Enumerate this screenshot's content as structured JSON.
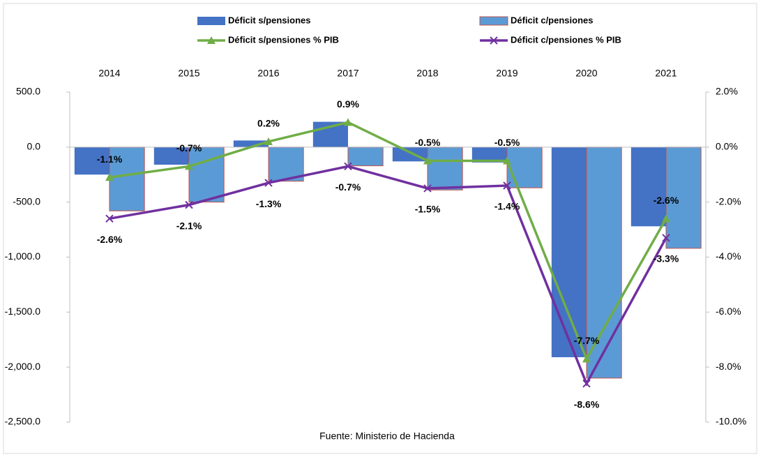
{
  "chart_data": {
    "type": "bar",
    "categories": [
      "2014",
      "2015",
      "2016",
      "2017",
      "2018",
      "2019",
      "2020",
      "2021"
    ],
    "series": [
      {
        "name": "Déficit s/pensiones",
        "type": "bar",
        "color": "#4472c4",
        "values": [
          -250,
          -160,
          60,
          230,
          -130,
          -140,
          -1910,
          -720
        ]
      },
      {
        "name": "Déficit c/pensiones",
        "type": "bar",
        "color": "#5b9bd5",
        "values": [
          -580,
          -500,
          -310,
          -170,
          -390,
          -370,
          -2100,
          -920
        ]
      },
      {
        "name": "Déficit  s/pensiones % PIB",
        "type": "line",
        "axis": "y2",
        "marker": "triangle",
        "color": "#70ad47",
        "values": [
          -1.1,
          -0.7,
          0.2,
          0.9,
          -0.5,
          -0.5,
          -7.7,
          -2.6
        ],
        "value_labels": [
          "-1.1%",
          "-0.7%",
          "0.2%",
          "0.9%",
          "-0.5%",
          "-0.5%",
          "-7.7%",
          "-2.6%"
        ]
      },
      {
        "name": "Déficit  c/pensiones % PIB",
        "type": "line",
        "axis": "y2",
        "marker": "x",
        "color": "#7030a0",
        "values": [
          -2.6,
          -2.1,
          -1.3,
          -0.7,
          -1.5,
          -1.4,
          -8.6,
          -3.3
        ],
        "value_labels": [
          "-2.6%",
          "-2.1%",
          "-1.3%",
          "-0.7%",
          "-1.5%",
          "-1.4%",
          "-8.6%",
          "-3.3%"
        ]
      }
    ],
    "ylim": [
      -2500,
      500
    ],
    "yticks": [
      {
        "value": 500,
        "label": "500.0"
      },
      {
        "value": 0,
        "label": "0.0"
      },
      {
        "value": -500,
        "label": "-500.0"
      },
      {
        "value": -1000,
        "label": "-1,000.0"
      },
      {
        "value": -1500,
        "label": "-1,500.0"
      },
      {
        "value": -2000,
        "label": "-2,000.0"
      },
      {
        "value": -2500,
        "label": "-2,500.0"
      }
    ],
    "y2lim": [
      -10,
      2
    ],
    "y2ticks": [
      {
        "value": 2,
        "label": "2.0%"
      },
      {
        "value": 0,
        "label": "0.0%"
      },
      {
        "value": -2,
        "label": "-2.0%"
      },
      {
        "value": -4,
        "label": "-4.0%"
      },
      {
        "value": -6,
        "label": "-6.0%"
      },
      {
        "value": -8,
        "label": "-8.0%"
      },
      {
        "value": -10,
        "label": "-10.0%"
      }
    ],
    "source": "Fuente: Ministerio de Hacienda"
  }
}
